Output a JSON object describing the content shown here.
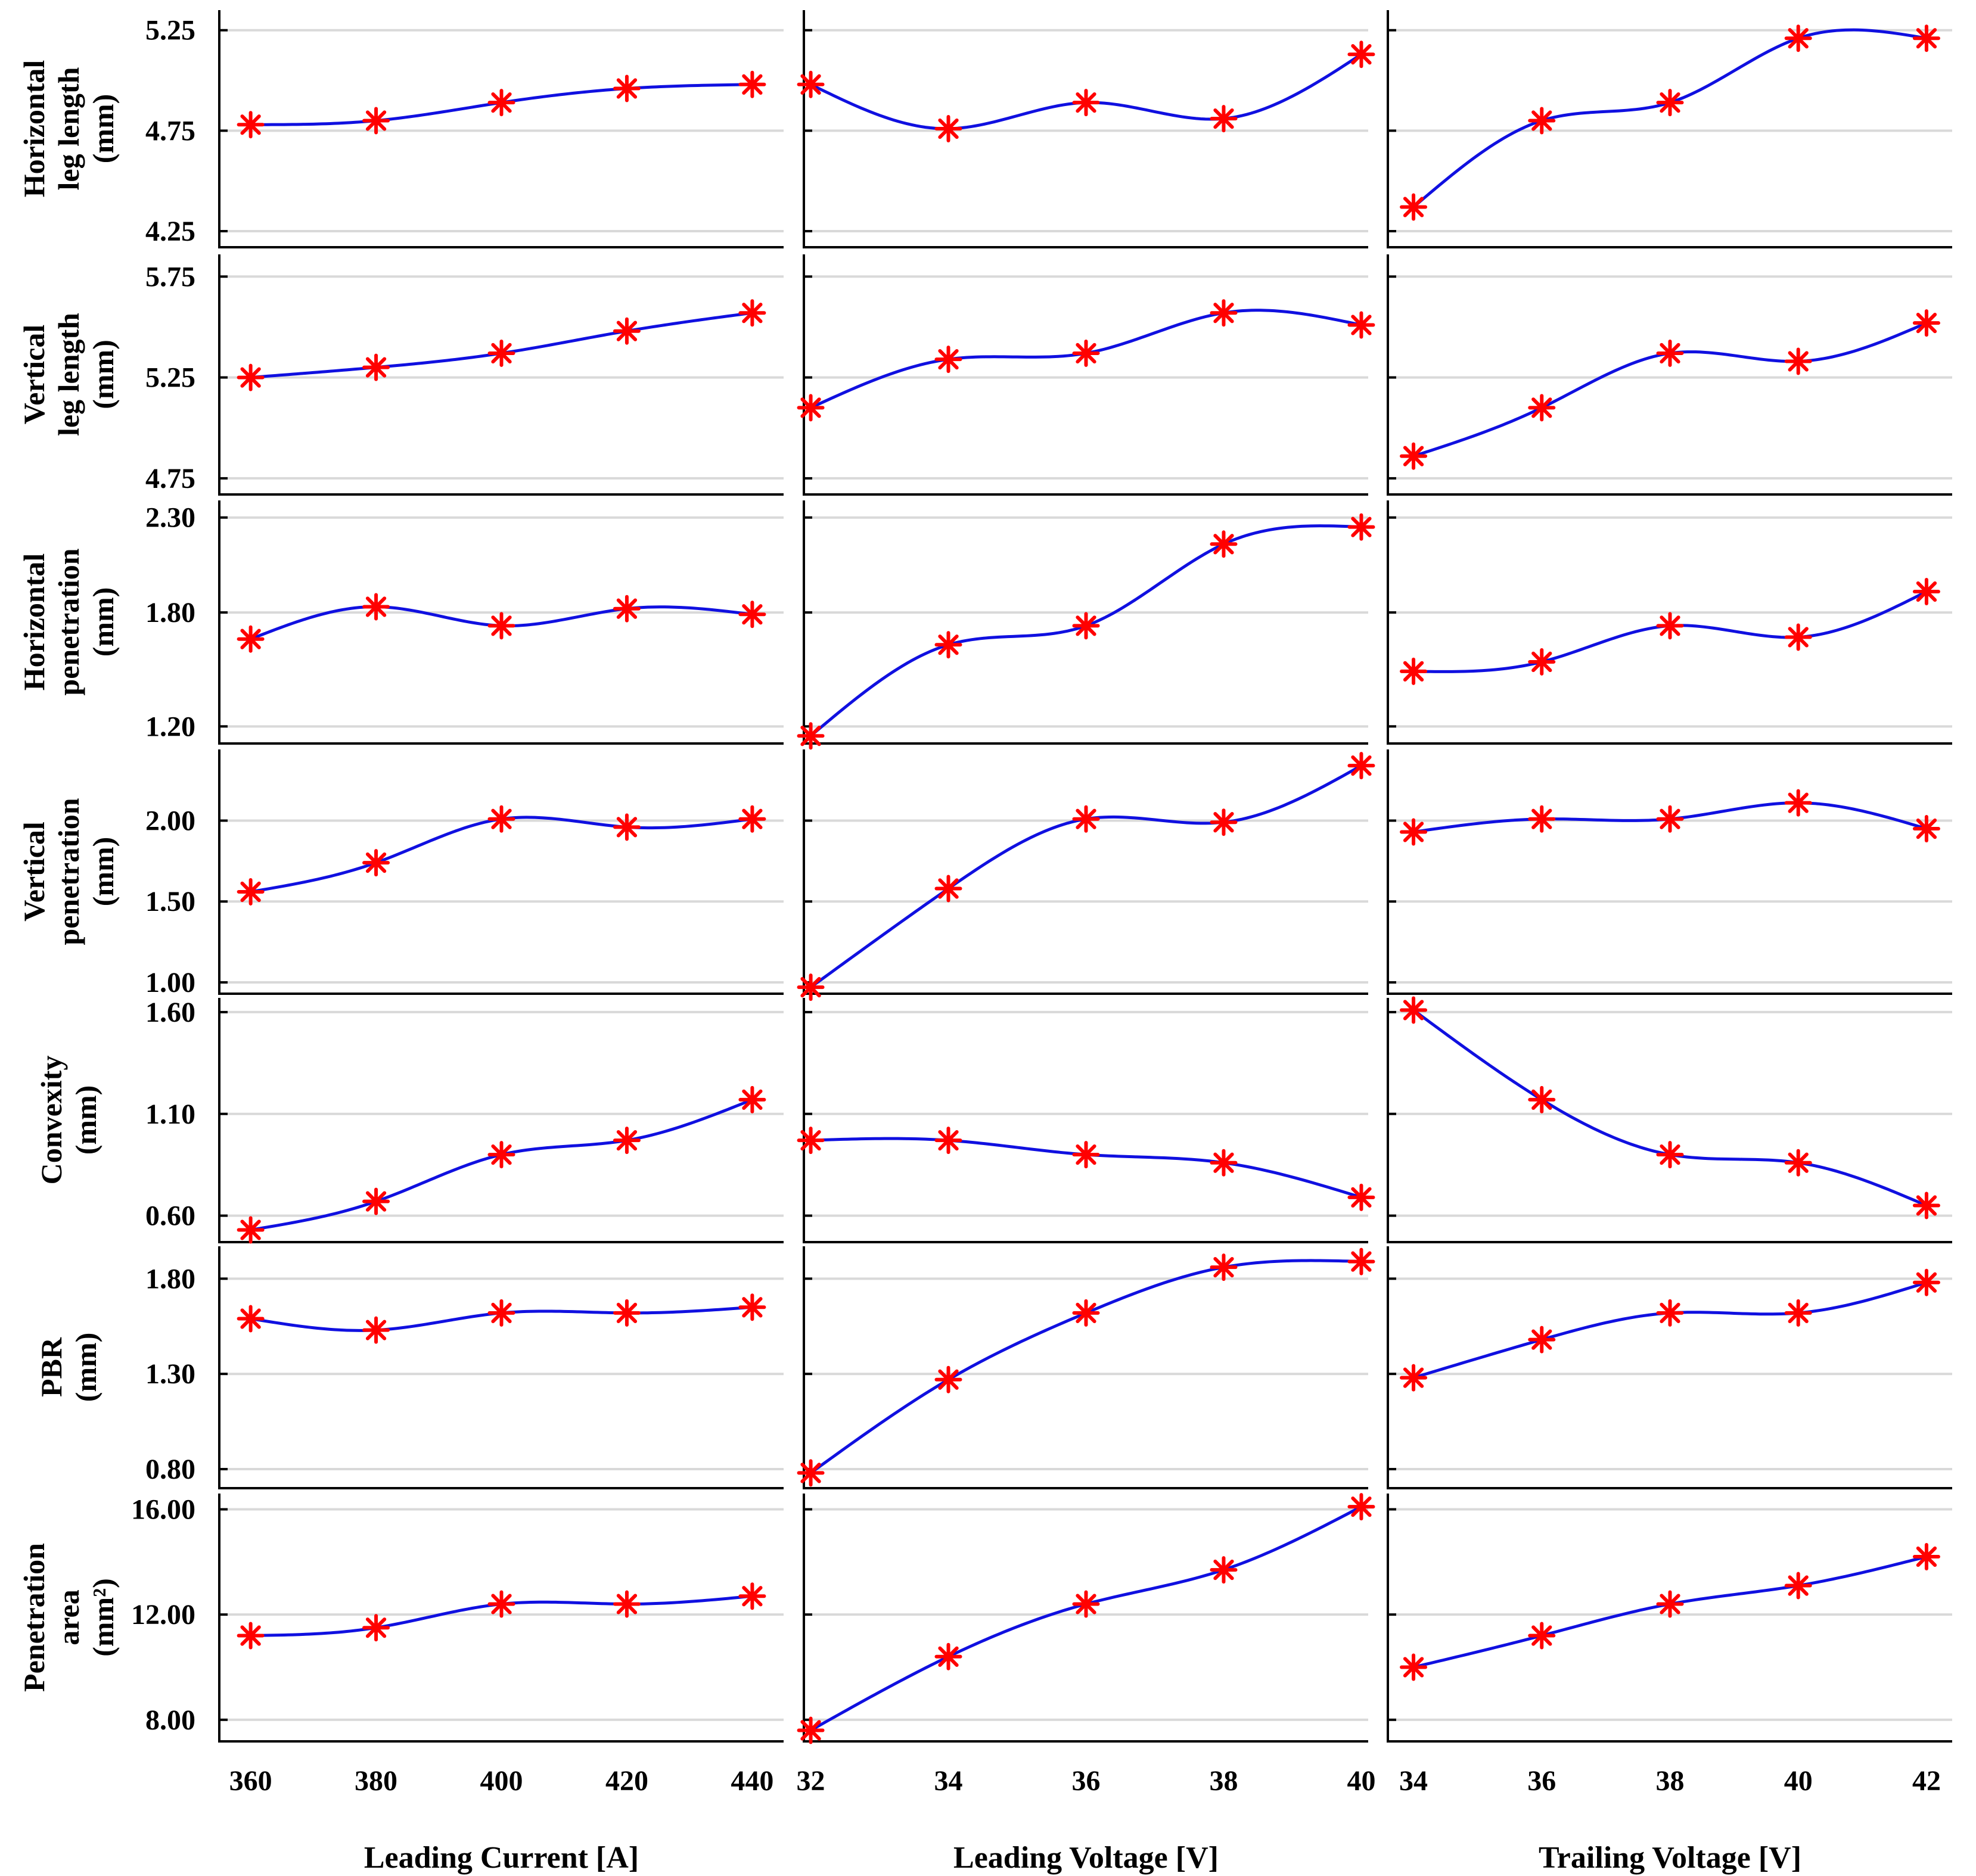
{
  "colors": {
    "curve": "#1010e0",
    "marker": "#ff0000",
    "grid": "#d9d9d9",
    "axis": "#000000"
  },
  "chart_data": {
    "type": "line",
    "columns": [
      {
        "xlabel": "Leading Current [A]",
        "x": [
          360,
          380,
          400,
          420,
          440
        ],
        "xticks": [
          "360",
          "380",
          "400",
          "420",
          "440"
        ],
        "xlim": [
          355,
          445
        ]
      },
      {
        "xlabel": "Leading Voltage [V]",
        "x": [
          32,
          34,
          36,
          38,
          40
        ],
        "xticks": [
          "32",
          "34",
          "36",
          "38",
          "40"
        ],
        "xlim": [
          31.9,
          40.1
        ]
      },
      {
        "xlabel": "Trailing Voltage [V]",
        "x": [
          34,
          36,
          38,
          40,
          42
        ],
        "xticks": [
          "34",
          "36",
          "38",
          "40",
          "42"
        ],
        "xlim": [
          33.6,
          42.4
        ]
      }
    ],
    "rows": [
      {
        "ylabel": [
          "Horizontal",
          "leg length",
          "(mm)"
        ],
        "ylim": [
          4.17,
          5.35
        ],
        "yticks": [
          4.25,
          4.75,
          5.25
        ],
        "ytick_labels": [
          "4.25",
          "4.75",
          "5.25"
        ],
        "series": [
          {
            "values": [
              4.78,
              4.8,
              4.89,
              4.96,
              4.98
            ]
          },
          {
            "values": [
              4.98,
              4.76,
              4.89,
              4.81,
              5.13
            ]
          },
          {
            "values": [
              4.37,
              4.8,
              4.89,
              5.21,
              5.21
            ]
          }
        ]
      },
      {
        "ylabel": [
          "Vertical",
          "leg length",
          "(mm)"
        ],
        "ylim": [
          4.67,
          5.86
        ],
        "yticks": [
          4.75,
          5.25,
          5.75
        ],
        "ytick_labels": [
          "4.75",
          "5.25",
          "5.75"
        ],
        "series": [
          {
            "values": [
              5.25,
              5.3,
              5.37,
              5.48,
              5.57
            ]
          },
          {
            "values": [
              5.1,
              5.34,
              5.37,
              5.57,
              5.51
            ]
          },
          {
            "values": [
              4.86,
              5.1,
              5.37,
              5.33,
              5.52
            ]
          }
        ]
      },
      {
        "ylabel": [
          "Horizontal",
          "penetration",
          "(mm)"
        ],
        "ylim": [
          1.11,
          2.39
        ],
        "yticks": [
          1.2,
          1.8,
          2.3
        ],
        "ytick_labels": [
          "1.20",
          "1.80",
          "2.30"
        ],
        "series": [
          {
            "values": [
              1.66,
              1.83,
              1.73,
              1.82,
              1.79
            ]
          },
          {
            "values": [
              1.15,
              1.63,
              1.73,
              2.16,
              2.25
            ]
          },
          {
            "values": [
              1.49,
              1.54,
              1.73,
              1.67,
              1.91
            ]
          }
        ]
      },
      {
        "ylabel": [
          "Vertical",
          "penetration",
          "(mm)"
        ],
        "ylim": [
          0.93,
          2.44
        ],
        "yticks": [
          1.0,
          1.5,
          2.0
        ],
        "ytick_labels": [
          "1.00",
          "1.50",
          "2.00"
        ],
        "series": [
          {
            "values": [
              1.56,
              1.74,
              2.01,
              1.96,
              2.01
            ]
          },
          {
            "values": [
              0.97,
              1.58,
              2.01,
              1.99,
              2.34
            ]
          },
          {
            "values": [
              1.93,
              2.01,
              2.01,
              2.11,
              1.95
            ]
          }
        ]
      },
      {
        "ylabel": [
          "Convexity",
          "(mm)"
        ],
        "ylim": [
          0.47,
          1.67
        ],
        "yticks": [
          0.6,
          1.1,
          1.6
        ],
        "ytick_labels": [
          "0.60",
          "1.10",
          "1.60"
        ],
        "series": [
          {
            "values": [
              0.53,
              0.67,
              0.9,
              0.97,
              1.17
            ]
          },
          {
            "values": [
              0.97,
              0.97,
              0.9,
              0.86,
              0.69
            ]
          },
          {
            "values": [
              1.61,
              1.17,
              0.9,
              0.86,
              0.65
            ]
          }
        ]
      },
      {
        "ylabel": [
          "PBR",
          "(mm)"
        ],
        "ylim": [
          0.7,
          1.97
        ],
        "yticks": [
          0.8,
          1.3,
          1.8
        ],
        "ytick_labels": [
          "0.80",
          "1.30",
          "1.80"
        ],
        "series": [
          {
            "values": [
              1.59,
              1.53,
              1.62,
              1.62,
              1.65
            ]
          },
          {
            "values": [
              0.78,
              1.27,
              1.62,
              1.86,
              1.89
            ]
          },
          {
            "values": [
              1.28,
              1.48,
              1.62,
              1.62,
              1.78
            ]
          }
        ]
      },
      {
        "ylabel": [
          "Penetration",
          "area",
          "(mm²)"
        ],
        "ylim": [
          7.18,
          16.6
        ],
        "yticks": [
          8.0,
          12.0,
          16.0
        ],
        "ytick_labels": [
          "8.00",
          "12.00",
          "16.00"
        ],
        "series": [
          {
            "values": [
              11.2,
              11.5,
              12.4,
              12.4,
              12.7
            ]
          },
          {
            "values": [
              7.6,
              10.4,
              12.4,
              13.7,
              16.1
            ]
          },
          {
            "values": [
              10.0,
              11.2,
              12.4,
              13.1,
              14.2
            ]
          }
        ]
      }
    ]
  }
}
